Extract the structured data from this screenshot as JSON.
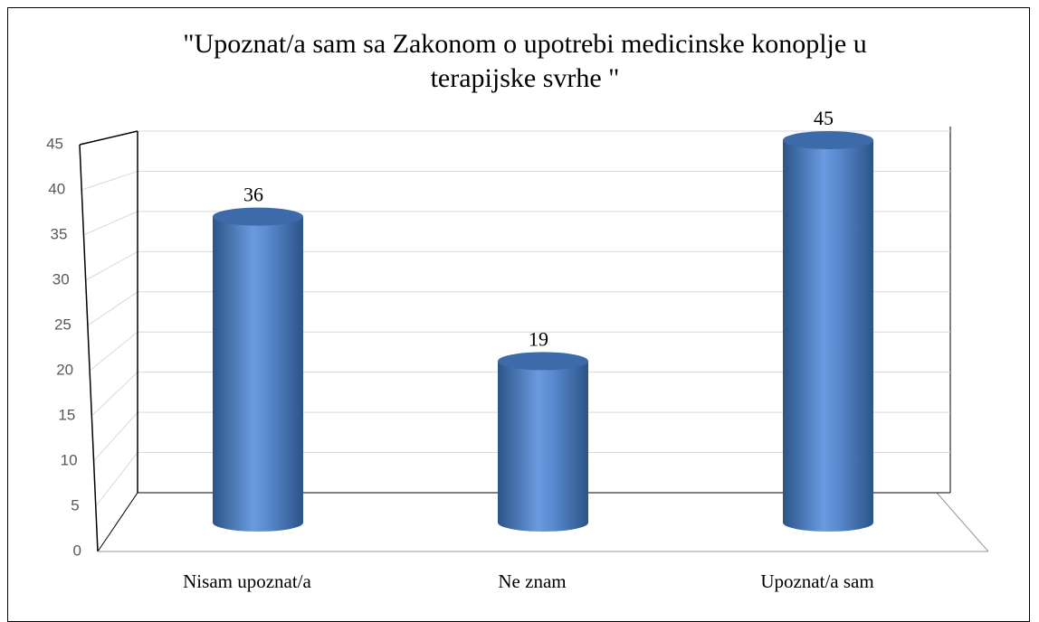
{
  "chart_data": {
    "type": "bar",
    "title": "\"Upoznat/a sam sa Zakonom o upotrebi medicinske konoplje u terapijske svrhe \"",
    "categories": [
      "Nisam upoznat/a",
      "Ne znam",
      "Upoznat/a sam"
    ],
    "values": [
      36,
      19,
      45
    ],
    "color": "#4f81bd",
    "ylim": [
      0,
      45
    ],
    "yticks": [
      0,
      5,
      10,
      15,
      20,
      25,
      30,
      35,
      40,
      45
    ],
    "grid": true
  }
}
